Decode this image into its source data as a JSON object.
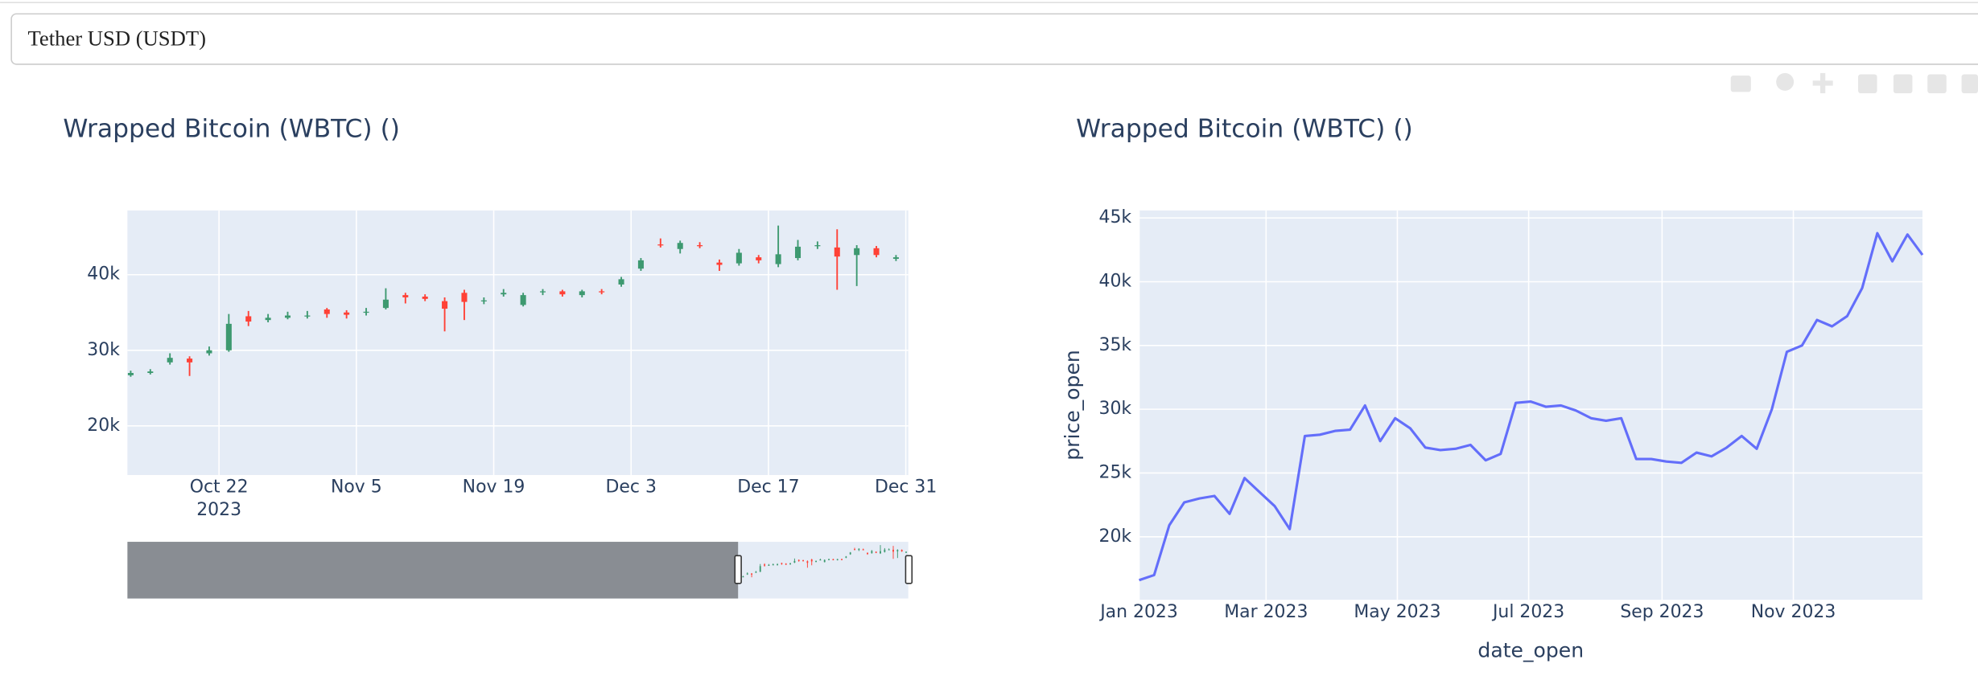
{
  "dropdown": {
    "selected": "Tether USD (USDT)"
  },
  "chart_data": [
    {
      "type": "candlestick",
      "title": "Wrapped Bitcoin (WBTC) ()",
      "x": [
        "2023-10-13",
        "2023-10-15",
        "2023-10-17",
        "2023-10-19",
        "2023-10-21",
        "2023-10-23",
        "2023-10-25",
        "2023-10-27",
        "2023-10-29",
        "2023-10-31",
        "2023-11-02",
        "2023-11-04",
        "2023-11-06",
        "2023-11-08",
        "2023-11-10",
        "2023-11-12",
        "2023-11-14",
        "2023-11-16",
        "2023-11-18",
        "2023-11-20",
        "2023-11-22",
        "2023-11-24",
        "2023-11-26",
        "2023-11-28",
        "2023-11-30",
        "2023-12-02",
        "2023-12-04",
        "2023-12-06",
        "2023-12-08",
        "2023-12-10",
        "2023-12-12",
        "2023-12-14",
        "2023-12-16",
        "2023-12-18",
        "2023-12-20",
        "2023-12-22",
        "2023-12-24",
        "2023-12-26",
        "2023-12-28",
        "2023-12-30"
      ],
      "open": [
        26700,
        27000,
        28400,
        28900,
        29600,
        30000,
        34500,
        34000,
        34300,
        34500,
        35400,
        35000,
        35000,
        35600,
        37300,
        37100,
        36500,
        37600,
        36500,
        37400,
        36000,
        37700,
        37800,
        37300,
        37800,
        38700,
        40800,
        44000,
        43400,
        43900,
        41600,
        41500,
        42300,
        41400,
        42200,
        43800,
        43600,
        42600,
        43500,
        42100
      ],
      "high": [
        27300,
        27500,
        29600,
        29200,
        30500,
        34800,
        35200,
        34800,
        35100,
        35200,
        35600,
        35300,
        35600,
        38200,
        37600,
        37400,
        37000,
        38000,
        37000,
        38100,
        37600,
        38100,
        38000,
        38000,
        38100,
        39700,
        42200,
        44800,
        44500,
        44300,
        42000,
        43400,
        42600,
        46500,
        44600,
        44400,
        46000,
        43900,
        43800,
        42600
      ],
      "low": [
        26500,
        26800,
        28100,
        26600,
        29300,
        29800,
        33200,
        33700,
        34100,
        34200,
        34300,
        34200,
        34600,
        35400,
        36200,
        36500,
        32500,
        34000,
        36100,
        37100,
        35800,
        37300,
        37100,
        37000,
        37400,
        38400,
        40500,
        43600,
        42800,
        43500,
        40500,
        41200,
        41500,
        41000,
        41900,
        43400,
        38000,
        38500,
        42300,
        41800
      ],
      "close": [
        27000,
        27200,
        29000,
        28400,
        30000,
        33500,
        33800,
        34300,
        34600,
        34600,
        34800,
        34700,
        35100,
        36700,
        37000,
        36800,
        35500,
        36400,
        36600,
        37600,
        37300,
        37800,
        37400,
        37800,
        37700,
        39400,
        41900,
        43900,
        44200,
        43800,
        41300,
        42900,
        41900,
        42700,
        43700,
        43900,
        42400,
        43500,
        42600,
        42300
      ],
      "increasing_color": "#3d9970",
      "decreasing_color": "#ff4136",
      "xlim": [
        "2023-10-12T16:00",
        "2023-12-31T06:00"
      ],
      "ylim": [
        13500,
        48500
      ],
      "yticks": [
        {
          "value": 20000,
          "label": "20k"
        },
        {
          "value": 30000,
          "label": "30k"
        },
        {
          "value": 40000,
          "label": "40k"
        }
      ],
      "xticks": [
        {
          "value": "2023-10-22",
          "label": "Oct 22",
          "sublabel": "2023"
        },
        {
          "value": "2023-11-05",
          "label": "Nov 5"
        },
        {
          "value": "2023-11-19",
          "label": "Nov 19"
        },
        {
          "value": "2023-12-03",
          "label": "Dec 3"
        },
        {
          "value": "2023-12-17",
          "label": "Dec 17"
        },
        {
          "value": "2023-12-31",
          "label": "Dec 31"
        }
      ],
      "grid": true,
      "rangeslider": {
        "xlim": [
          "2023-01-01",
          "2023-12-31"
        ]
      }
    },
    {
      "type": "line",
      "title": "Wrapped Bitcoin (WBTC) ()",
      "x_label": "date_open",
      "y_label": "price_open",
      "x": [
        "2023-01-01",
        "2023-01-08",
        "2023-01-15",
        "2023-01-22",
        "2023-01-29",
        "2023-02-05",
        "2023-02-12",
        "2023-02-19",
        "2023-02-26",
        "2023-03-05",
        "2023-03-12",
        "2023-03-19",
        "2023-03-26",
        "2023-04-02",
        "2023-04-09",
        "2023-04-16",
        "2023-04-23",
        "2023-04-30",
        "2023-05-07",
        "2023-05-14",
        "2023-05-21",
        "2023-05-28",
        "2023-06-04",
        "2023-06-11",
        "2023-06-18",
        "2023-06-25",
        "2023-07-02",
        "2023-07-09",
        "2023-07-16",
        "2023-07-23",
        "2023-07-30",
        "2023-08-06",
        "2023-08-13",
        "2023-08-20",
        "2023-08-27",
        "2023-09-03",
        "2023-09-10",
        "2023-09-17",
        "2023-09-24",
        "2023-10-01",
        "2023-10-08",
        "2023-10-15",
        "2023-10-22",
        "2023-10-29",
        "2023-11-05",
        "2023-11-12",
        "2023-11-19",
        "2023-11-26",
        "2023-12-03",
        "2023-12-10",
        "2023-12-17",
        "2023-12-24",
        "2023-12-31"
      ],
      "values": [
        16600,
        17000,
        20900,
        22700,
        23000,
        23200,
        21800,
        24600,
        23500,
        22400,
        20600,
        27900,
        28000,
        28300,
        28400,
        30300,
        27500,
        29300,
        28500,
        27000,
        26800,
        26900,
        27200,
        26000,
        26500,
        30500,
        30600,
        30200,
        30300,
        29900,
        29300,
        29100,
        29300,
        26100,
        26100,
        25900,
        25800,
        26600,
        26300,
        27000,
        27900,
        26900,
        30000,
        34500,
        35000,
        37000,
        36500,
        37300,
        39500,
        43800,
        41600,
        43700,
        42100
      ],
      "color": "#636efa",
      "xlim": [
        "2023-01-01",
        "2023-12-31"
      ],
      "ylim": [
        15060,
        45590
      ],
      "yticks": [
        {
          "value": 20000,
          "label": "20k"
        },
        {
          "value": 25000,
          "label": "25k"
        },
        {
          "value": 30000,
          "label": "30k"
        },
        {
          "value": 35000,
          "label": "35k"
        },
        {
          "value": 40000,
          "label": "40k"
        },
        {
          "value": 45000,
          "label": "45k"
        }
      ],
      "xticks": [
        {
          "value": "2023-01-01",
          "label": "Jan 2023"
        },
        {
          "value": "2023-03-01",
          "label": "Mar 2023"
        },
        {
          "value": "2023-05-01",
          "label": "May 2023"
        },
        {
          "value": "2023-07-01",
          "label": "Jul 2023"
        },
        {
          "value": "2023-09-01",
          "label": "Sep 2023"
        },
        {
          "value": "2023-11-01",
          "label": "Nov 2023"
        }
      ],
      "grid": true
    }
  ]
}
